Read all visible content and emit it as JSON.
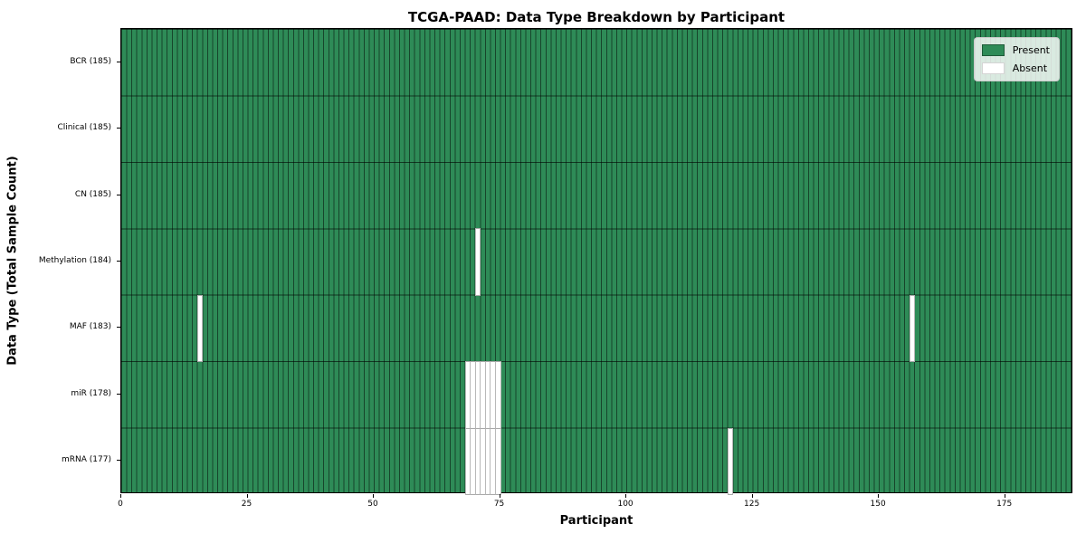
{
  "title": "TCGA-PAAD: Data Type Breakdown by Participant",
  "axes": {
    "xlabel": "Participant",
    "ylabel": "Data Type (Total Sample Count)"
  },
  "legend": {
    "present_label": "Present",
    "absent_label": "Absent"
  },
  "colors": {
    "present": "#2E8B57",
    "absent": "#FFFFFF",
    "plot_border": "#000000",
    "legend_border": "#CCCCCC"
  },
  "chart_data": {
    "type": "heatmap",
    "title": "TCGA-PAAD: Data Type Breakdown by Participant",
    "xlabel": "Participant",
    "ylabel": "Data Type (Total Sample Count)",
    "legend_entries": [
      "Present",
      "Absent"
    ],
    "legend_position": "upper right",
    "n_participants": 185,
    "xlim": [
      0,
      188.5
    ],
    "x_ticks": [
      0,
      25,
      50,
      75,
      100,
      125,
      150,
      175
    ],
    "cell_values": "binary presence (1 = Present, 0 = Absent) per data type per participant",
    "rows": [
      {
        "label": "BCR (185)",
        "data_type": "BCR",
        "present_count": 185,
        "absent_participants": []
      },
      {
        "label": "Clinical (185)",
        "data_type": "Clinical",
        "present_count": 185,
        "absent_participants": []
      },
      {
        "label": "CN (185)",
        "data_type": "CN",
        "present_count": 185,
        "absent_participants": []
      },
      {
        "label": "Methylation (184)",
        "data_type": "Methylation",
        "present_count": 184,
        "absent_participants": [
          70
        ]
      },
      {
        "label": "MAF (183)",
        "data_type": "MAF",
        "present_count": 183,
        "absent_participants": [
          15,
          156
        ]
      },
      {
        "label": "miR (178)",
        "data_type": "miR",
        "present_count": 178,
        "absent_participants": [
          68,
          69,
          70,
          71,
          72,
          73,
          74
        ]
      },
      {
        "label": "mRNA (177)",
        "data_type": "mRNA",
        "present_count": 177,
        "absent_participants": [
          68,
          69,
          70,
          71,
          72,
          73,
          74,
          120
        ]
      }
    ]
  }
}
